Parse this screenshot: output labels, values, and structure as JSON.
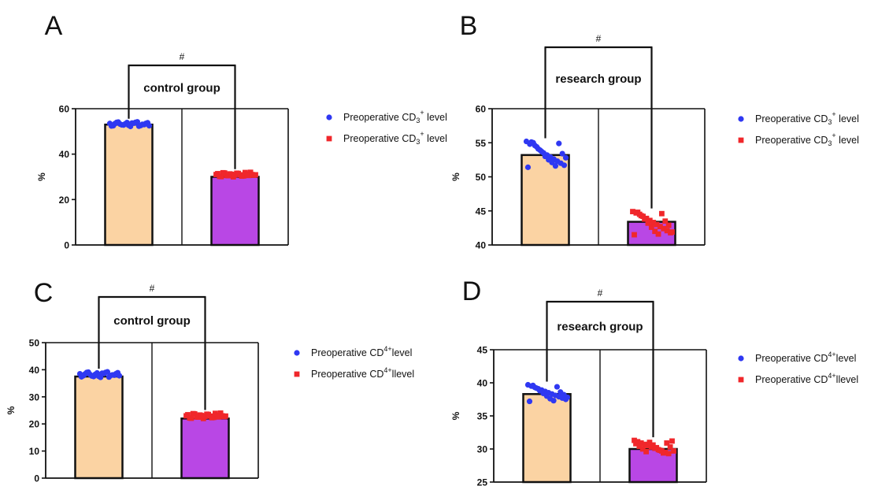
{
  "colors": {
    "bar_1": "#fbd3a3",
    "bar_2": "#b947e5",
    "marker_1": "#2f38f2",
    "marker_2": "#f0272b",
    "axis": "#111111"
  },
  "chart_data": [
    {
      "panel": "A",
      "type": "bar",
      "title": "control group",
      "significance": "#",
      "ylabel": "%",
      "ylim": [
        0,
        60
      ],
      "yticks": [
        0,
        20,
        40,
        60
      ],
      "grid": false,
      "legend_position": "right",
      "categories": [
        "",
        ""
      ],
      "values": [
        53,
        30
      ],
      "series": [
        {
          "name_prefix": "Preoperative CD",
          "name_sub": "3",
          "name_sup": "+",
          "name_suffix": " level",
          "marker": "circle",
          "value": 53,
          "points": [
            53.5,
            52.5,
            54.0,
            53.2,
            52.8,
            53.9,
            52.2,
            53.6,
            54.2,
            52.6,
            53.0,
            53.8,
            52.4,
            53.4,
            54.1,
            52.9,
            53.3,
            52.7,
            53.7,
            54.0,
            52.3,
            53.1,
            53.5,
            52.5
          ]
        },
        {
          "name_prefix": "Preoperative CD",
          "name_sub": "3",
          "name_sup": "+",
          "name_suffix": " level",
          "marker": "square",
          "value": 30,
          "points": [
            31.0,
            30.2,
            31.8,
            30.6,
            31.3,
            30.0,
            31.6,
            30.9,
            30.4,
            31.2,
            32.0,
            30.7,
            31.4,
            30.1,
            31.7,
            30.5,
            31.1,
            30.8,
            31.5,
            30.3,
            31.9,
            30.6,
            31.0,
            30.9
          ]
        }
      ]
    },
    {
      "panel": "B",
      "type": "bar",
      "title": "research group",
      "significance": "#",
      "ylabel": "%",
      "ylim": [
        40,
        60
      ],
      "yticks": [
        40,
        45,
        50,
        55,
        60
      ],
      "grid": false,
      "legend_position": "right",
      "categories": [
        "",
        ""
      ],
      "values": [
        53.2,
        43.4
      ],
      "series": [
        {
          "name_prefix": "Preoperative CD",
          "name_sub": "3",
          "name_sup": "+",
          "name_suffix": " level",
          "marker": "circle",
          "value": 53.2,
          "points": [
            55.2,
            54.8,
            55.0,
            54.4,
            53.9,
            53.5,
            53.2,
            52.9,
            52.6,
            52.3,
            52.0,
            51.7,
            51.4,
            55.1,
            54.6,
            54.1,
            53.7,
            53.0,
            52.5,
            52.1,
            51.6,
            54.9,
            53.4,
            52.8
          ]
        },
        {
          "name_prefix": "Preoperative CD",
          "name_sub": "3",
          "name_sup": "+",
          "name_suffix": " level",
          "marker": "square",
          "value": 43.4,
          "points": [
            44.9,
            44.7,
            44.5,
            44.2,
            43.9,
            43.6,
            43.3,
            43.0,
            42.7,
            42.4,
            42.1,
            41.8,
            41.5,
            44.8,
            44.3,
            43.8,
            43.2,
            42.6,
            42.0,
            41.6,
            44.6,
            43.5,
            42.9,
            41.9
          ]
        }
      ]
    },
    {
      "panel": "C",
      "type": "bar",
      "title": "control group",
      "significance": "#",
      "ylabel": "%",
      "ylim": [
        0,
        50
      ],
      "yticks": [
        0,
        10,
        20,
        30,
        40,
        50
      ],
      "grid": false,
      "legend_position": "right",
      "categories": [
        "",
        ""
      ],
      "values": [
        37.5,
        22
      ],
      "series": [
        {
          "name_prefix": "Preoperative CD",
          "name_sub": "",
          "name_sup": "4+",
          "name_suffix": "level",
          "marker": "circle",
          "value": 37.5,
          "points": [
            38.5,
            37.8,
            39.0,
            38.2,
            37.5,
            38.8,
            37.2,
            38.6,
            39.2,
            37.9,
            38.0,
            38.9,
            37.4,
            38.4,
            39.1,
            37.7,
            38.3,
            37.6,
            38.7,
            39.0,
            37.3,
            38.1,
            38.5,
            37.8
          ]
        },
        {
          "name_prefix": "Preoperative CD",
          "name_sub": "",
          "name_sup": "4+",
          "name_suffix": "llevel",
          "marker": "square",
          "value": 22,
          "points": [
            23.0,
            22.2,
            23.8,
            22.6,
            23.3,
            22.0,
            23.6,
            22.9,
            22.4,
            23.2,
            24.0,
            22.7,
            23.4,
            22.1,
            23.7,
            22.5,
            23.1,
            22.8,
            23.5,
            22.3,
            23.9,
            22.6,
            23.0,
            22.9
          ]
        }
      ]
    },
    {
      "panel": "D",
      "type": "bar",
      "title": "research group",
      "significance": "#",
      "ylabel": "%",
      "ylim": [
        25,
        45
      ],
      "yticks": [
        25,
        30,
        35,
        40,
        45
      ],
      "grid": false,
      "legend_position": "right",
      "categories": [
        "",
        ""
      ],
      "values": [
        38.3,
        30
      ],
      "series": [
        {
          "name_prefix": "Preoperative CD",
          "name_sub": "",
          "name_sup": "4+",
          "name_suffix": "level",
          "marker": "circle",
          "value": 38.3,
          "points": [
            39.7,
            39.5,
            39.3,
            39.1,
            38.9,
            38.7,
            38.5,
            38.3,
            38.1,
            37.9,
            37.7,
            37.5,
            37.2,
            39.6,
            39.2,
            38.8,
            38.4,
            38.0,
            37.6,
            37.3,
            39.4,
            38.6,
            38.2,
            37.8
          ]
        },
        {
          "name_prefix": "Preoperative CD",
          "name_sub": "",
          "name_sup": "4+",
          "name_suffix": "llevel",
          "marker": "square",
          "value": 30,
          "points": [
            31.3,
            31.1,
            30.9,
            30.7,
            30.5,
            30.3,
            30.1,
            29.9,
            29.7,
            29.5,
            29.3,
            31.2,
            30.8,
            30.4,
            30.0,
            29.6,
            31.0,
            30.6,
            30.2,
            29.8,
            29.4,
            30.9,
            30.3,
            29.7
          ]
        }
      ]
    }
  ]
}
